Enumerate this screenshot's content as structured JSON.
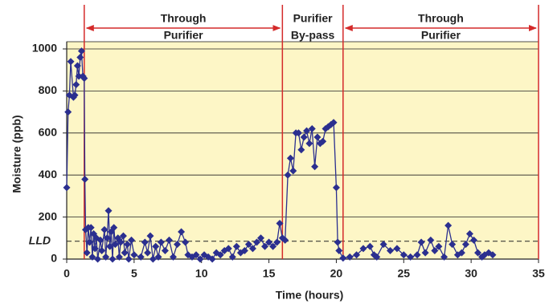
{
  "chart_data": {
    "type": "line",
    "x_label": "Time (hours)",
    "y_label": "Moisture (ppb)",
    "xlim": [
      0,
      35
    ],
    "xticks": [
      0,
      5,
      10,
      15,
      20,
      25,
      30,
      35
    ],
    "ylim": [
      0,
      1000
    ],
    "yticks": [
      0,
      200,
      400,
      600,
      800,
      1000
    ],
    "grid": true,
    "color": "#2b2f8f",
    "background": "#fdf6c6",
    "lld": {
      "value": 85,
      "label": "LLD"
    },
    "boundaries": [
      1.3,
      16,
      20.5,
      35
    ],
    "boundary_color": "#d42a2a",
    "regions": [
      {
        "lines": [
          "Through",
          "Purifier"
        ],
        "arrow": true
      },
      {
        "lines": [
          "Purifier",
          "By-pass"
        ],
        "arrow": false
      },
      {
        "lines": [
          "Through",
          "Purifier"
        ],
        "arrow": true
      }
    ],
    "x": [
      0,
      0.1,
      0.2,
      0.3,
      0.5,
      0.6,
      0.7,
      0.8,
      0.9,
      1.0,
      1.1,
      1.2,
      1.3,
      1.35,
      1.4,
      1.5,
      1.6,
      1.7,
      1.8,
      1.9,
      2.0,
      2.1,
      2.2,
      2.3,
      2.5,
      2.6,
      2.8,
      2.9,
      3.0,
      3.1,
      3.2,
      3.3,
      3.4,
      3.5,
      3.6,
      3.8,
      3.9,
      4.0,
      4.2,
      4.3,
      4.5,
      4.6,
      4.8,
      5.0,
      5.5,
      5.8,
      6.0,
      6.2,
      6.4,
      6.6,
      6.8,
      7.0,
      7.3,
      7.6,
      7.9,
      8.2,
      8.5,
      8.8,
      9.0,
      9.3,
      9.6,
      9.9,
      10.2,
      10.5,
      10.8,
      11.1,
      11.4,
      11.7,
      12.0,
      12.3,
      12.6,
      12.9,
      13.2,
      13.5,
      13.8,
      14.1,
      14.4,
      14.7,
      15.0,
      15.3,
      15.6,
      15.8,
      16.0,
      16.2,
      16.4,
      16.6,
      16.8,
      17.0,
      17.2,
      17.4,
      17.6,
      17.8,
      18.0,
      18.2,
      18.4,
      18.6,
      18.8,
      19.0,
      19.2,
      19.4,
      19.6,
      19.8,
      20.0,
      20.1,
      20.2,
      20.5,
      21,
      21.5,
      22,
      22.5,
      22.8,
      23,
      23.5,
      24,
      24.5,
      25,
      25.5,
      26,
      26.3,
      26.6,
      27,
      27.3,
      27.6,
      28,
      28.3,
      28.6,
      29,
      29.3,
      29.6,
      29.9,
      30.2,
      30.5,
      30.8,
      31,
      31.3,
      31.6
    ],
    "values": [
      340,
      700,
      780,
      940,
      770,
      780,
      830,
      920,
      870,
      960,
      990,
      870,
      860,
      380,
      140,
      30,
      150,
      80,
      150,
      10,
      120,
      50,
      100,
      0,
      90,
      40,
      140,
      10,
      100,
      230,
      60,
      130,
      0,
      150,
      70,
      100,
      10,
      80,
      110,
      30,
      70,
      0,
      90,
      20,
      10,
      80,
      30,
      110,
      0,
      60,
      10,
      80,
      40,
      90,
      10,
      70,
      130,
      80,
      20,
      10,
      20,
      0,
      20,
      10,
      0,
      30,
      20,
      40,
      50,
      10,
      60,
      30,
      40,
      70,
      50,
      80,
      100,
      60,
      80,
      60,
      80,
      170,
      100,
      90,
      400,
      480,
      420,
      600,
      600,
      520,
      580,
      610,
      550,
      620,
      440,
      580,
      550,
      560,
      620,
      630,
      640,
      650,
      340,
      80,
      40,
      5,
      10,
      20,
      50,
      60,
      20,
      10,
      70,
      40,
      50,
      20,
      10,
      20,
      80,
      30,
      90,
      40,
      60,
      10,
      160,
      70,
      20,
      30,
      70,
      120,
      90,
      30,
      10,
      20,
      30,
      20
    ]
  }
}
